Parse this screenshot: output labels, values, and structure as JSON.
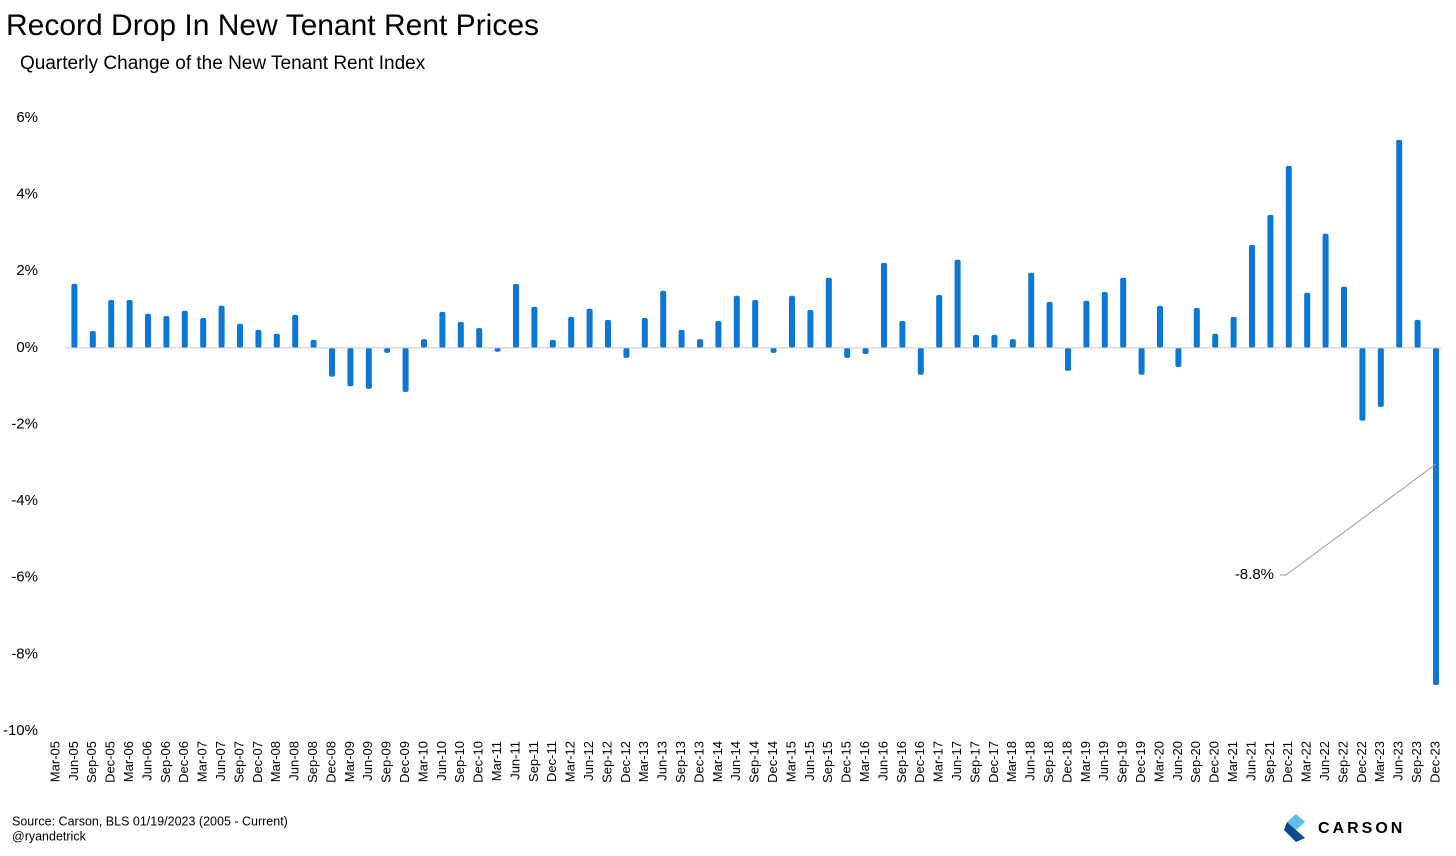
{
  "chart_data": {
    "type": "bar",
    "title": "Record Drop In New Tenant Rent Prices",
    "subtitle": "Quarterly Change of the New Tenant Rent Index",
    "categories": [
      "Mar-05",
      "Jun-05",
      "Sep-05",
      "Dec-05",
      "Mar-06",
      "Jun-06",
      "Sep-06",
      "Dec-06",
      "Mar-07",
      "Jun-07",
      "Sep-07",
      "Dec-07",
      "Mar-08",
      "Jun-08",
      "Sep-08",
      "Dec-08",
      "Mar-09",
      "Jun-09",
      "Sep-09",
      "Dec-09",
      "Mar-10",
      "Jun-10",
      "Sep-10",
      "Dec-10",
      "Mar-11",
      "Jun-11",
      "Sep-11",
      "Dec-11",
      "Mar-12",
      "Jun-12",
      "Sep-12",
      "Dec-12",
      "Mar-13",
      "Jun-13",
      "Sep-13",
      "Dec-13",
      "Mar-14",
      "Jun-14",
      "Sep-14",
      "Dec-14",
      "Mar-15",
      "Jun-15",
      "Sep-15",
      "Dec-15",
      "Mar-16",
      "Jun-16",
      "Sep-16",
      "Dec-16",
      "Mar-17",
      "Jun-17",
      "Sep-17",
      "Dec-17",
      "Mar-18",
      "Jun-18",
      "Sep-18",
      "Dec-18",
      "Mar-19",
      "Jun-19",
      "Sep-19",
      "Dec-19",
      "Mar-20",
      "Jun-20",
      "Sep-20",
      "Dec-20",
      "Mar-21",
      "Jun-21",
      "Sep-21",
      "Dec-21",
      "Mar-22",
      "Jun-22",
      "Sep-22",
      "Dec-22",
      "Mar-23",
      "Jun-23",
      "Sep-23",
      "Dec-23"
    ],
    "values": [
      null,
      1.67,
      0.44,
      1.25,
      1.25,
      0.89,
      0.83,
      0.97,
      0.78,
      1.1,
      0.63,
      0.47,
      0.37,
      0.86,
      0.21,
      -0.75,
      -1.0,
      -1.07,
      -0.13,
      -1.15,
      0.23,
      0.94,
      0.68,
      0.52,
      -0.1,
      1.67,
      1.07,
      0.21,
      0.81,
      1.02,
      0.73,
      -0.26,
      0.78,
      1.49,
      0.47,
      0.23,
      0.7,
      1.36,
      1.25,
      -0.13,
      1.36,
      0.99,
      1.83,
      -0.26,
      -0.16,
      2.22,
      0.7,
      -0.7,
      1.38,
      2.3,
      0.34,
      0.34,
      0.23,
      1.96,
      1.2,
      -0.6,
      1.23,
      1.46,
      1.83,
      -0.7,
      1.1,
      -0.5,
      1.04,
      0.37,
      0.81,
      2.69,
      3.47,
      4.75,
      1.44,
      2.98,
      1.6,
      -1.9,
      -1.54,
      5.43,
      0.73,
      -8.8
    ],
    "value_labels": [
      null,
      null,
      null,
      null,
      null,
      null,
      null,
      null,
      null,
      null,
      null,
      null,
      null,
      null,
      null,
      null,
      null,
      null,
      null,
      null,
      null,
      null,
      null,
      null,
      null,
      null,
      null,
      null,
      null,
      null,
      null,
      null,
      null,
      null,
      null,
      null,
      null,
      null,
      null,
      null,
      null,
      null,
      null,
      null,
      null,
      null,
      null,
      null,
      null,
      null,
      null,
      null,
      null,
      null,
      null,
      null,
      null,
      null,
      null,
      null,
      null,
      null,
      null,
      null,
      null,
      null,
      null,
      null,
      null,
      null,
      null,
      null,
      null,
      null,
      null,
      "-8.8%"
    ],
    "color": "#0a78d4",
    "ylim": [
      -10,
      6
    ],
    "yticks": [
      {
        "value": -10,
        "label": "-10%"
      },
      {
        "value": -8,
        "label": "-8%"
      },
      {
        "value": -6,
        "label": "-6%"
      },
      {
        "value": -4,
        "label": "-4%"
      },
      {
        "value": -2,
        "label": "-2%"
      },
      {
        "value": 0,
        "label": "0%"
      },
      {
        "value": 2,
        "label": "2%"
      },
      {
        "value": 4,
        "label": "4%"
      },
      {
        "value": 6,
        "label": "6%"
      }
    ],
    "grid": false,
    "source": "Source: Carson, BLS 01/19/2023 (2005 - Current)",
    "handle": "@ryandetrick",
    "logo": "CARSON"
  }
}
